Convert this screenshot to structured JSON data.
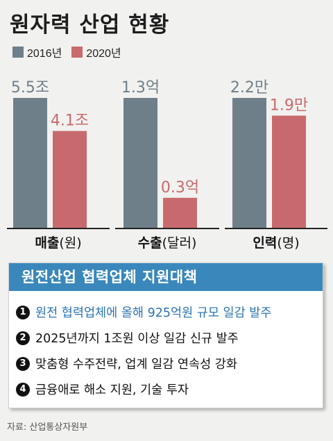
{
  "title": "원자력 산업 현황",
  "legend": [
    {
      "label": "2016년",
      "color": "#6e7f89"
    },
    {
      "label": "2020년",
      "color": "#c86a6d"
    }
  ],
  "chart_data": {
    "type": "bar",
    "title": "원자력 산업 현황",
    "groups": [
      {
        "category": "매출",
        "unit_label": "(원)",
        "values": [
          5.5,
          4.1
        ],
        "labels": [
          "5.5조",
          "4.1조"
        ],
        "max": 5.5
      },
      {
        "category": "수출",
        "unit_label": "(달러)",
        "values": [
          1.3,
          0.3
        ],
        "labels": [
          "1.3억",
          "0.3억"
        ],
        "max": 1.3
      },
      {
        "category": "인력",
        "unit_label": "(명)",
        "values": [
          2.2,
          1.9
        ],
        "labels": [
          "2.2만",
          "1.9만"
        ],
        "max": 2.2
      }
    ],
    "series": [
      {
        "name": "2016년",
        "color": "#6e7f89"
      },
      {
        "name": "2020년",
        "color": "#c86a6d"
      }
    ],
    "label_colors": [
      "#6e7f89",
      "#c86a6d"
    ]
  },
  "panel": {
    "title": "원전산업 협력업체 지원대책",
    "items": [
      {
        "num": "1",
        "text": "원전 협력업체에 올해 925억원 규모 일감 발주",
        "highlight": true
      },
      {
        "num": "2",
        "text": "2025년까지 1조원 이상 일감 신규 발주",
        "highlight": false
      },
      {
        "num": "3",
        "text": "맞춤형 수주전략, 업계 일감 연속성 강화",
        "highlight": false
      },
      {
        "num": "4",
        "text": "금융애로 해소 지원, 기술 투자",
        "highlight": false
      }
    ]
  },
  "source": "자료: 산업통상자원부"
}
